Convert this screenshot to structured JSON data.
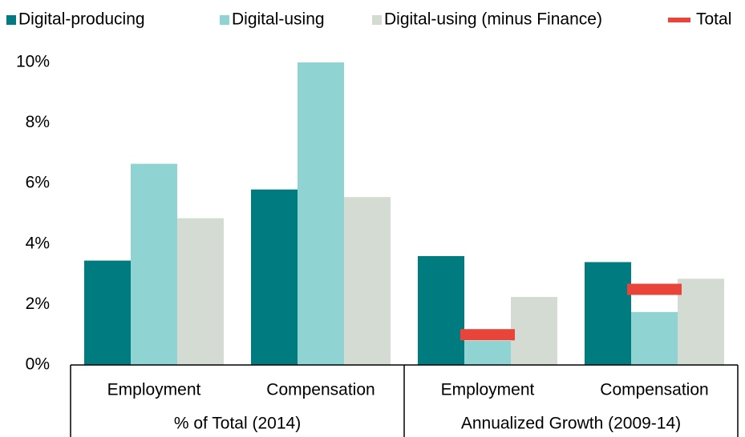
{
  "chart_data": {
    "type": "bar",
    "categories": [
      "Employment",
      "Compensation",
      "Employment",
      "Compensation"
    ],
    "category_groups": [
      "% of Total (2014)",
      "Annualized Growth (2009-14)"
    ],
    "series": [
      {
        "name": "Digital-producing",
        "color": "#007b80",
        "values": [
          3.45,
          5.8,
          3.6,
          3.4
        ]
      },
      {
        "name": "Digital-using",
        "color": "#8fd3d3",
        "values": [
          6.65,
          10.0,
          0.8,
          1.75
        ]
      },
      {
        "name": "Digital-using (minus Finance)",
        "color": "#d3dbd3",
        "values": [
          4.85,
          5.55,
          2.25,
          2.85
        ]
      },
      {
        "name": "Total",
        "color": "#e8443a",
        "marker": "dash",
        "values": [
          null,
          null,
          1.0,
          2.5
        ]
      }
    ],
    "ylim": [
      0,
      10
    ],
    "yticks": [
      {
        "value": 0,
        "label": "0%"
      },
      {
        "value": 2,
        "label": "2%"
      },
      {
        "value": 4,
        "label": "4%"
      },
      {
        "value": 6,
        "label": "6%"
      },
      {
        "value": 8,
        "label": "8%"
      },
      {
        "value": 10,
        "label": "10%"
      }
    ],
    "legend": "top",
    "grid": false
  }
}
